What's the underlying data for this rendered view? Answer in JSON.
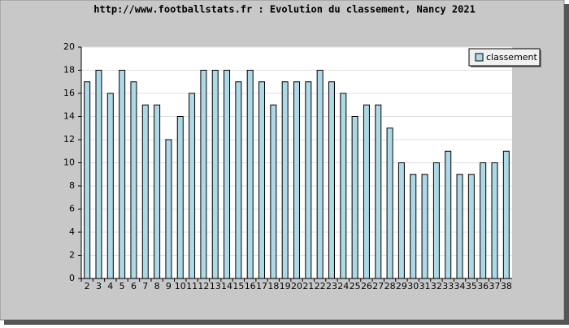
{
  "chart_data": {
    "type": "bar",
    "title": "http://www.footballstats.fr : Evolution du classement, Nancy 2021",
    "categories": [
      "2",
      "3",
      "4",
      "5",
      "6",
      "7",
      "8",
      "9",
      "10",
      "11",
      "12",
      "13",
      "14",
      "15",
      "16",
      "17",
      "18",
      "19",
      "20",
      "21",
      "22",
      "23",
      "24",
      "25",
      "26",
      "27",
      "28",
      "29",
      "30",
      "31",
      "32",
      "33",
      "34",
      "35",
      "36",
      "37",
      "38"
    ],
    "series": [
      {
        "name": "classement",
        "color": "#add8e6",
        "values": [
          17,
          18,
          16,
          18,
          17,
          15,
          15,
          12,
          14,
          16,
          18,
          18,
          18,
          17,
          18,
          17,
          15,
          17,
          17,
          17,
          18,
          17,
          16,
          14,
          15,
          15,
          13,
          10,
          9,
          9,
          10,
          11,
          9,
          9,
          10,
          10,
          11
        ]
      }
    ],
    "ylim": [
      0,
      20
    ],
    "yticks": [
      0,
      2,
      4,
      6,
      8,
      10,
      12,
      14,
      16,
      18,
      20
    ],
    "grid": true,
    "legend": "top-right"
  }
}
